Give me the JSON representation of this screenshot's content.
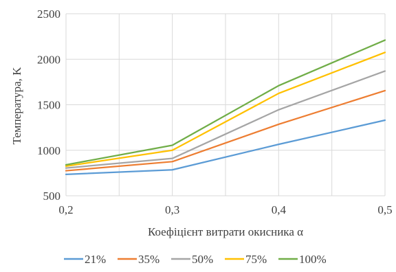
{
  "chart_data": {
    "type": "line",
    "xlabel": "Коефіцієнт  витрати окисника α",
    "ylabel": "Температура, K",
    "x": [
      0.2,
      0.3,
      0.4,
      0.5
    ],
    "x_tick_labels": [
      "0,2",
      "0,3",
      "0,4",
      "0,5"
    ],
    "xlim": [
      0.2,
      0.5
    ],
    "ylim": [
      500,
      2500
    ],
    "y_ticks": [
      500,
      1000,
      1500,
      2000,
      2500
    ],
    "y_tick_labels": [
      "500",
      "1000",
      "1500",
      "2000",
      "2500"
    ],
    "grid": true,
    "legend_position": "bottom",
    "series": [
      {
        "name": "21%",
        "color": "#5B9BD5",
        "values": [
          735,
          785,
          1065,
          1330
        ]
      },
      {
        "name": "35%",
        "color": "#ED7D31",
        "values": [
          775,
          875,
          1285,
          1655
        ]
      },
      {
        "name": "50%",
        "color": "#A5A5A5",
        "values": [
          805,
          910,
          1445,
          1870
        ]
      },
      {
        "name": "75%",
        "color": "#FFC000",
        "values": [
          825,
          1000,
          1625,
          2075
        ]
      },
      {
        "name": "100%",
        "color": "#70AD47",
        "values": [
          840,
          1055,
          1710,
          2210
        ]
      }
    ]
  }
}
